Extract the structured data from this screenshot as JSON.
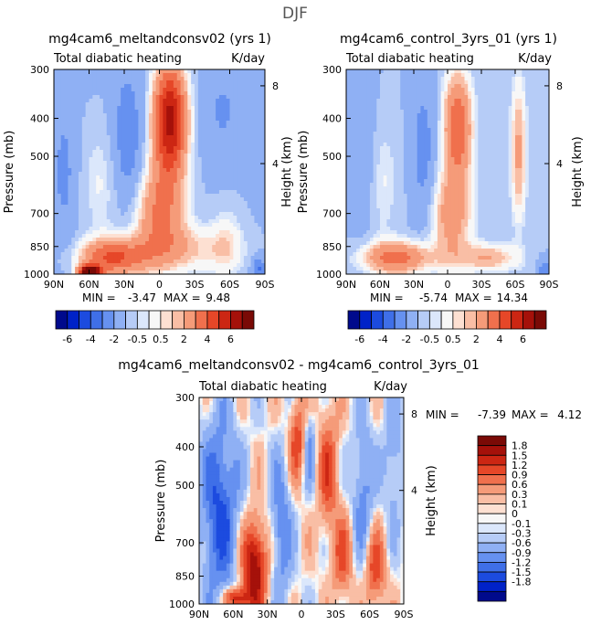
{
  "figure_title": "DJF",
  "colors": {
    "blue_scale": [
      "#000a8c",
      "#0022c8",
      "#1c4bdf",
      "#3f6fe8",
      "#6691f0",
      "#8fb0f4",
      "#b6ccf7",
      "#dbe7fb"
    ],
    "white": "#f7f7f7",
    "red_scale": [
      "#fde0d2",
      "#f9bea5",
      "#f59b79",
      "#f0704d",
      "#e64728",
      "#cc2613",
      "#a5110a",
      "#7a0a06"
    ]
  },
  "chart_data": [
    {
      "type": "heatmap",
      "panel": "top-left",
      "title": "mg4cam6_meltandconsv02 (yrs 1)",
      "subtitle_left": "Total diabatic heating",
      "subtitle_right": "K/day",
      "xlabel": "",
      "ylabel": "Pressure (mb)",
      "ylabel_right": "Height (km)",
      "x_ticks": [
        "90N",
        "60N",
        "30N",
        "0",
        "30S",
        "60S",
        "90S"
      ],
      "y_ticks": [
        "300",
        "400",
        "500",
        "700",
        "850",
        "1000"
      ],
      "y_ticks_right": [
        "8",
        "4"
      ],
      "ylim": [
        300,
        1000
      ],
      "xlim": [
        90,
        -90
      ],
      "min_label": "MIN =",
      "min_value": "-3.47",
      "max_label": "MAX =",
      "max_value": "9.48",
      "data_min": -3.47,
      "data_max": 9.48
    },
    {
      "type": "heatmap",
      "panel": "top-right",
      "title": "mg4cam6_control_3yrs_01 (yrs 1)",
      "subtitle_left": "Total diabatic heating",
      "subtitle_right": "K/day",
      "xlabel": "",
      "ylabel": "Pressure (mb)",
      "ylabel_right": "Height (km)",
      "x_ticks": [
        "90N",
        "60N",
        "30N",
        "0",
        "30S",
        "60S",
        "90S"
      ],
      "y_ticks": [
        "300",
        "400",
        "500",
        "700",
        "850",
        "1000"
      ],
      "y_ticks_right": [
        "8",
        "4"
      ],
      "ylim": [
        300,
        1000
      ],
      "xlim": [
        90,
        -90
      ],
      "min_label": "MIN =",
      "min_value": "-5.74",
      "max_label": "MAX =",
      "max_value": "14.34",
      "data_min": -5.74,
      "data_max": 14.34
    },
    {
      "type": "heatmap",
      "panel": "bottom",
      "title": "mg4cam6_meltandconsv02 - mg4cam6_control_3yrs_01",
      "subtitle_left": "Total diabatic heating",
      "subtitle_right": "K/day",
      "xlabel": "",
      "ylabel": "Pressure (mb)",
      "ylabel_right": "Height (km)",
      "x_ticks": [
        "90N",
        "60N",
        "30N",
        "0",
        "30S",
        "60S",
        "90S"
      ],
      "y_ticks": [
        "300",
        "400",
        "500",
        "700",
        "850",
        "1000"
      ],
      "y_ticks_right": [
        "8",
        "4"
      ],
      "ylim": [
        300,
        1000
      ],
      "xlim": [
        90,
        -90
      ],
      "min_label": "MIN =",
      "min_value": "-7.39",
      "max_label": "MAX =",
      "max_value": "4.12",
      "data_min": -7.39,
      "data_max": 4.12
    }
  ],
  "colorbars": {
    "top_labels": [
      "-6",
      "-4",
      "-2",
      "-0.5",
      "0.5",
      "2",
      "4",
      "6"
    ],
    "diff_labels": [
      "1.8",
      "1.5",
      "1.2",
      "0.9",
      "0.6",
      "0.3",
      "0.1",
      "0",
      "-0.1",
      "-0.3",
      "-0.6",
      "-0.9",
      "-1.2",
      "-1.5",
      "-1.8"
    ]
  }
}
